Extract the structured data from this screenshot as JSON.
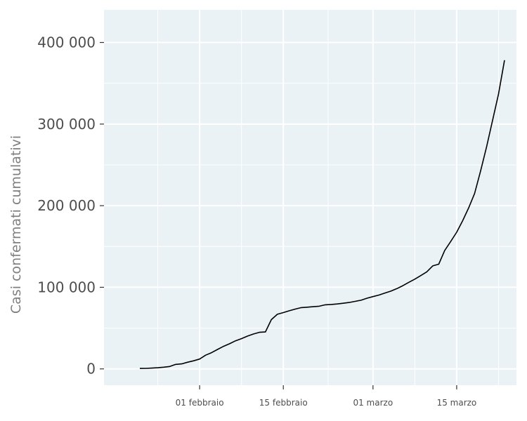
{
  "chart_data": {
    "type": "line",
    "title": "",
    "xlabel": "",
    "ylabel": "Casi confermati cumulativi",
    "x_axis": {
      "type": "date",
      "range": [
        "2020-01-16",
        "2020-03-25"
      ],
      "ticks": [
        {
          "date": "2020-02-01",
          "label": "01 febbraio"
        },
        {
          "date": "2020-02-15",
          "label": "15 febbraio"
        },
        {
          "date": "2020-03-01",
          "label": "01 marzo"
        },
        {
          "date": "2020-03-15",
          "label": "15 marzo"
        }
      ]
    },
    "y_axis": {
      "range": [
        -20000,
        440000
      ],
      "ticks": [
        {
          "value": 0,
          "label": "0"
        },
        {
          "value": 100000,
          "label": "100 000"
        },
        {
          "value": 200000,
          "label": "200 000"
        },
        {
          "value": 300000,
          "label": "300 000"
        },
        {
          "value": 400000,
          "label": "400 000"
        }
      ]
    },
    "grid": true,
    "legend": "none",
    "colors": {
      "panel_background": "#eaf2f5",
      "grid": "#ffffff",
      "line": "#000000",
      "tick_text": "#4d4d4d",
      "axis_title": "#7f7f7f"
    },
    "series": [
      {
        "x": [
          "2020-01-22",
          "2020-01-23",
          "2020-01-24",
          "2020-01-25",
          "2020-01-26",
          "2020-01-27",
          "2020-01-28",
          "2020-01-29",
          "2020-01-30",
          "2020-01-31",
          "2020-02-01",
          "2020-02-02",
          "2020-02-03",
          "2020-02-04",
          "2020-02-05",
          "2020-02-06",
          "2020-02-07",
          "2020-02-08",
          "2020-02-09",
          "2020-02-10",
          "2020-02-11",
          "2020-02-12",
          "2020-02-13",
          "2020-02-14",
          "2020-02-15",
          "2020-02-16",
          "2020-02-17",
          "2020-02-18",
          "2020-02-19",
          "2020-02-20",
          "2020-02-21",
          "2020-02-22",
          "2020-02-23",
          "2020-02-24",
          "2020-02-25",
          "2020-02-26",
          "2020-02-27",
          "2020-02-28",
          "2020-02-29",
          "2020-03-01",
          "2020-03-02",
          "2020-03-03",
          "2020-03-04",
          "2020-03-05",
          "2020-03-06",
          "2020-03-07",
          "2020-03-08",
          "2020-03-09",
          "2020-03-10",
          "2020-03-11",
          "2020-03-12",
          "2020-03-13",
          "2020-03-14",
          "2020-03-15",
          "2020-03-16",
          "2020-03-17",
          "2020-03-18",
          "2020-03-19",
          "2020-03-20",
          "2020-03-21",
          "2020-03-22",
          "2020-03-23"
        ],
        "y": [
          555,
          654,
          941,
          1434,
          2118,
          2927,
          5578,
          6166,
          8234,
          9927,
          12038,
          16787,
          19881,
          23892,
          27635,
          30794,
          34391,
          37120,
          40150,
          42762,
          44802,
          45221,
          60368,
          66885,
          69030,
          71224,
          73258,
          75136,
          75639,
          76197,
          76819,
          78572,
          78958,
          79561,
          80406,
          81388,
          82746,
          84112,
          86604,
          88585,
          90443,
          93016,
          95314,
          98425,
          102050,
          106099,
          109991,
          114381,
          118948,
          126214,
          128343,
          145193,
          156097,
          167449,
          181546,
          197168,
          214915,
          242713,
          272167,
          304528,
          337020,
          378287
        ]
      }
    ]
  }
}
